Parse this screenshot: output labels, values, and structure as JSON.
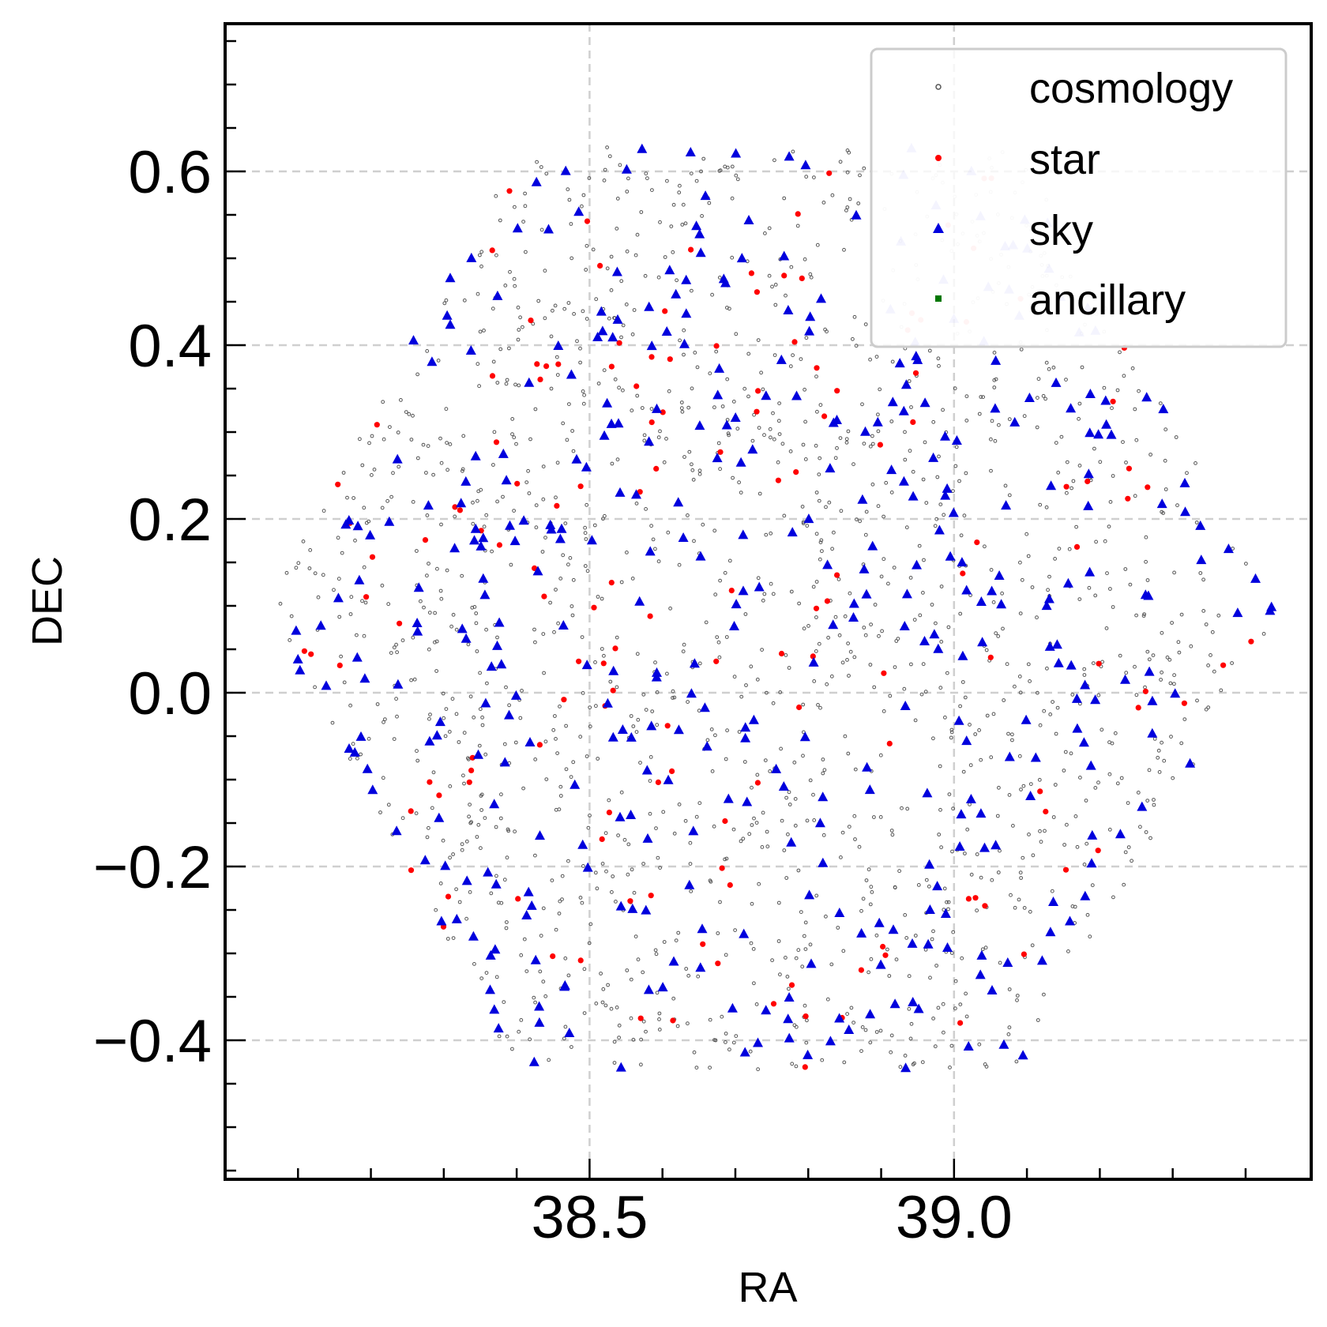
{
  "chart_data": {
    "type": "scatter",
    "xlabel": "RA",
    "ylabel": "DEC",
    "xlim": [
      38.0,
      39.49
    ],
    "ylim": [
      -0.56,
      0.77
    ],
    "x_ticks": [
      38.5,
      39.0
    ],
    "x_tick_labels": [
      "38.5",
      "39.0"
    ],
    "y_ticks": [
      -0.4,
      -0.2,
      0.0,
      0.2,
      0.4,
      0.6
    ],
    "y_tick_labels": [
      "−0.4",
      "−0.2",
      "0.0",
      "0.2",
      "0.4",
      "0.6"
    ],
    "x_minor_step": 0.1,
    "y_minor_step": 0.05,
    "grid": true,
    "legend_position": "top-right",
    "field": {
      "center": [
        38.75,
        0.0958
      ],
      "radius_ra": 0.6945,
      "radius_dec": 0.6142,
      "shape": "hexagon"
    },
    "series": [
      {
        "name": "cosmology",
        "marker": "hollow-circle",
        "color": "#555555",
        "count": 1500
      },
      {
        "name": "star",
        "marker": "circle",
        "color": "#ff0000",
        "count": 150
      },
      {
        "name": "sky",
        "marker": "triangle",
        "color": "#0000dd",
        "count": 400
      },
      {
        "name": "ancillary",
        "marker": "square",
        "color": "#007700",
        "count": 0
      }
    ]
  }
}
